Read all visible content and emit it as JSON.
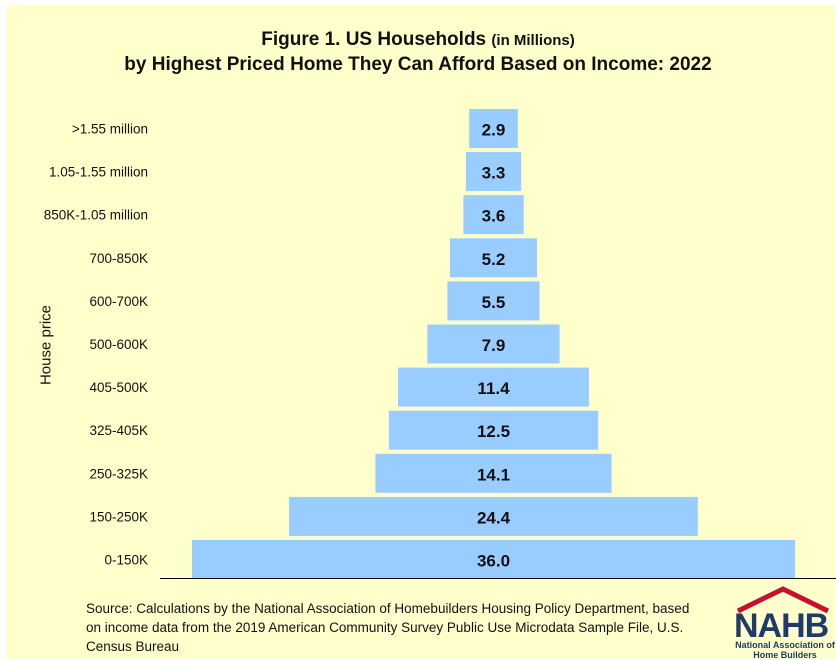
{
  "title_line_1": "Figure 1. US Households",
  "title_line_1_small": "(in Millions)",
  "title_line_2": "by Highest Priced Home They Can Afford Based on Income: 2022",
  "source": "Source: Calculations by the National Association of Homebuilders Housing Policy Department, based on income data from the 2019 American Community Survey Public Use Microdata Sample File, U.S. Census Bureau",
  "logo": {
    "name": "NAHB",
    "subtitle": "National Association of Home Builders"
  },
  "colors": {
    "background": "#ffffcc",
    "bar": "#99ccff",
    "text": "#111111",
    "logo": "#1f3a6b",
    "logo_roof": "#c8102e"
  },
  "chart_data": {
    "type": "bar",
    "orientation": "horizontal-centered",
    "title": "Figure 1. US Households (in Millions) by Highest Priced Home They Can Afford Based on Income: 2022",
    "ylabel": "House price",
    "xlabel": "",
    "categories": [
      ">1.55 million",
      "1.05-1.55 million",
      "850K-1.05 million",
      "700-850K",
      "600-700K",
      "500-600K",
      "405-500K",
      "325-405K",
      "250-325K",
      "150-250K",
      "0-150K"
    ],
    "values": [
      2.9,
      3.3,
      3.6,
      5.2,
      5.5,
      7.9,
      11.4,
      12.5,
      14.1,
      24.4,
      36.0
    ],
    "value_labels": [
      "2.9",
      "3.3",
      "3.6",
      "5.2",
      "5.5",
      "7.9",
      "11.4",
      "12.5",
      "14.1",
      "24.4",
      "36.0"
    ],
    "grid": false,
    "legend": "none"
  }
}
